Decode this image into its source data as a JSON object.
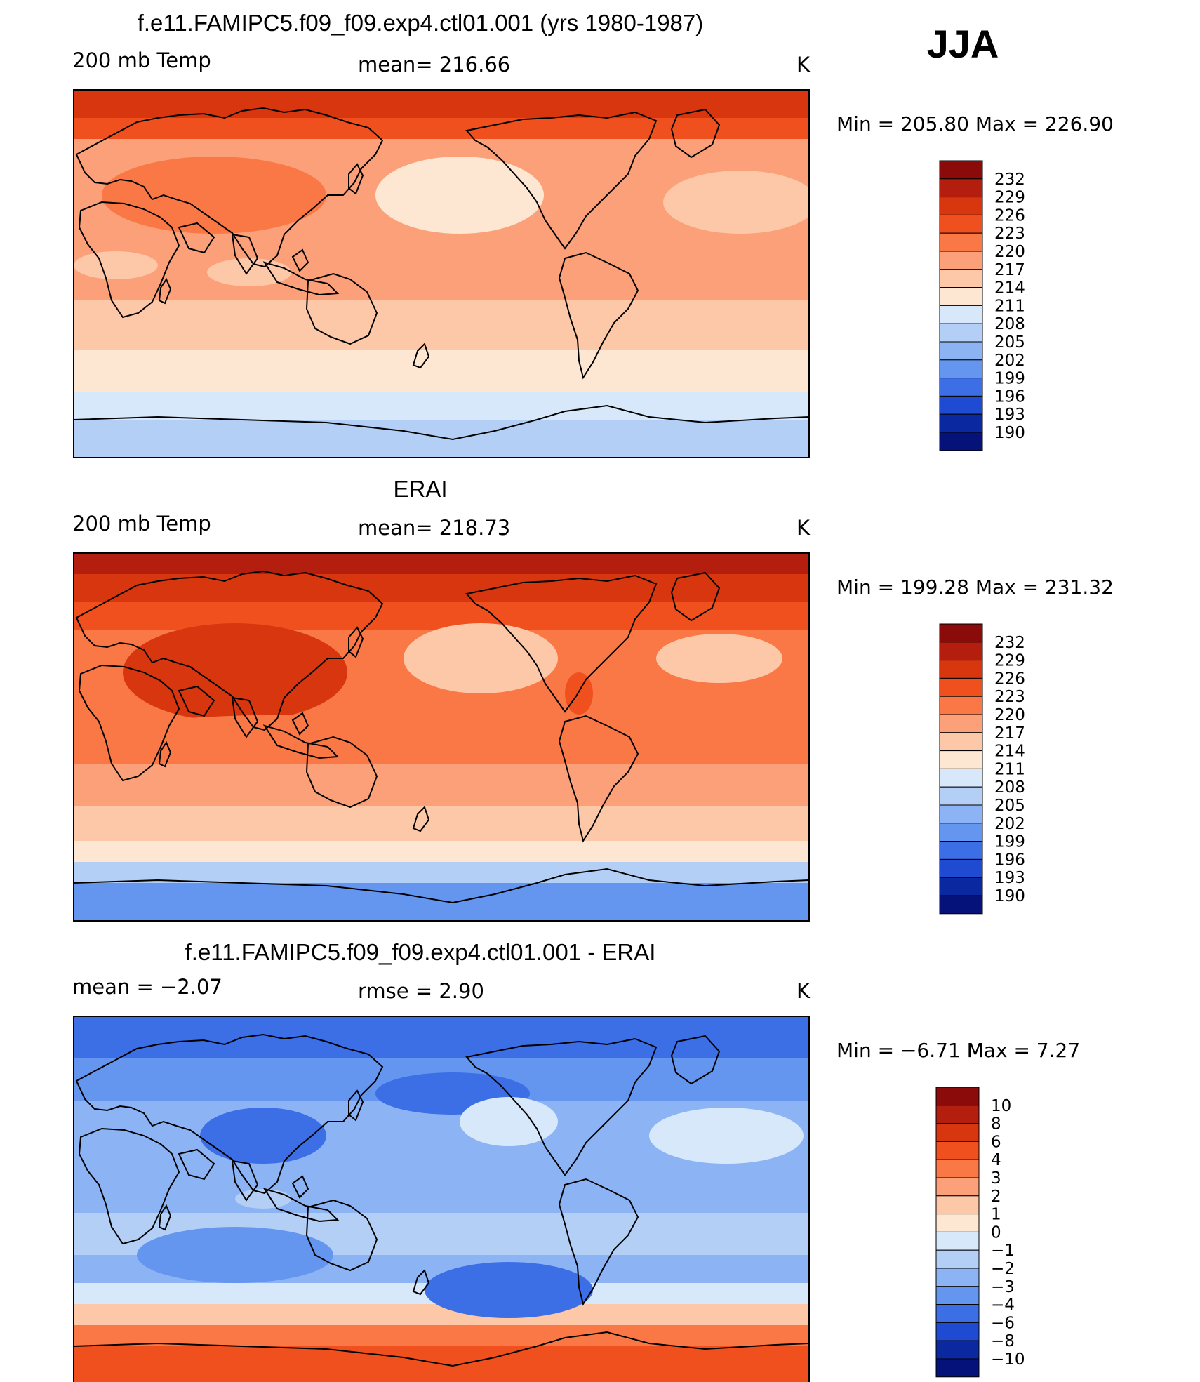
{
  "season": "JJA",
  "panels": [
    {
      "title": "f.e11.FAMIPC5.f09_f09.exp4.ctl01.001 (yrs 1980-1987)",
      "left_label": "200 mb Temp",
      "center_label": "mean=  216.66",
      "units": "K",
      "minmax": "Min  =  205.80  Max  =  226.90",
      "colorbar": {
        "labels": [
          "232",
          "229",
          "226",
          "223",
          "220",
          "217",
          "214",
          "211",
          "208",
          "205",
          "202",
          "199",
          "196",
          "193",
          "190"
        ],
        "colors": [
          "#8b0a0a",
          "#b41e0f",
          "#d7360f",
          "#f0501e",
          "#fa7846",
          "#fba078",
          "#fcc8a8",
          "#fde6d2",
          "#d7e8fa",
          "#b3cff5",
          "#8cb4f5",
          "#6496f0",
          "#3c6ee6",
          "#1e4bd2",
          "#0a28a0",
          "#05127a"
        ]
      },
      "field": "model"
    },
    {
      "title": "ERAI",
      "left_label": "200 mb Temp",
      "center_label": "mean=  218.73",
      "units": "K",
      "minmax": "Min  =  199.28  Max  =  231.32",
      "colorbar": {
        "labels": [
          "232",
          "229",
          "226",
          "223",
          "220",
          "217",
          "214",
          "211",
          "208",
          "205",
          "202",
          "199",
          "196",
          "193",
          "190"
        ],
        "colors": [
          "#8b0a0a",
          "#b41e0f",
          "#d7360f",
          "#f0501e",
          "#fa7846",
          "#fba078",
          "#fcc8a8",
          "#fde6d2",
          "#d7e8fa",
          "#b3cff5",
          "#8cb4f5",
          "#6496f0",
          "#3c6ee6",
          "#1e4bd2",
          "#0a28a0",
          "#05127a"
        ]
      },
      "field": "obs"
    },
    {
      "title": "f.e11.FAMIPC5.f09_f09.exp4.ctl01.001 - ERAI",
      "left_label": "mean  =    −2.07",
      "center_label": "rmse  =     2.90",
      "units": "K",
      "minmax": "Min  =    −6.71  Max  =     7.27",
      "colorbar": {
        "labels": [
          "10",
          "8",
          "6",
          "4",
          "3",
          "2",
          "1",
          "0",
          "−1",
          "−2",
          "−3",
          "−4",
          "−6",
          "−8",
          "−10"
        ],
        "colors": [
          "#8b0a0a",
          "#b41e0f",
          "#d7360f",
          "#f0501e",
          "#fa7846",
          "#fba078",
          "#fcc8a8",
          "#fde6d2",
          "#d7e8fa",
          "#b3cff5",
          "#8cb4f5",
          "#6496f0",
          "#3c6ee6",
          "#1e4bd2",
          "#0a28a0",
          "#05127a"
        ]
      },
      "field": "diff"
    }
  ]
}
